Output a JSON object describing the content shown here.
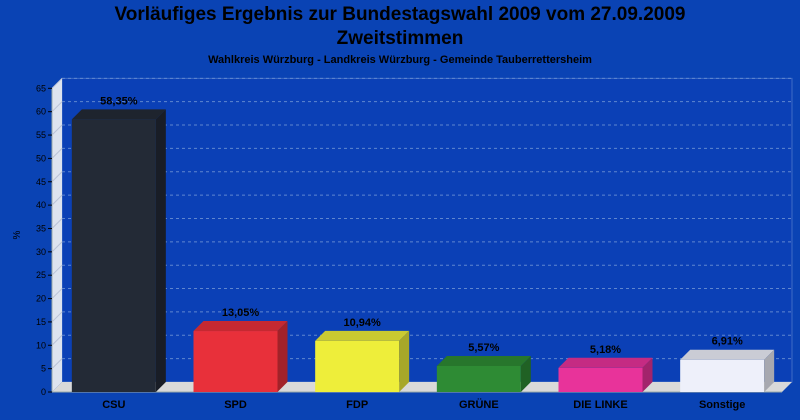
{
  "title_line1": "Vorläufiges Ergebnis zur Bundestagswahl 2009 vom 27.09.2009",
  "title_line2": "Zweitstimmen",
  "subtitle": "Wahlkreis Würzburg - Landkreis Würzburg - Gemeinde Tauberrettersheim",
  "colors": {
    "background": "#0a43b4",
    "plot_back": "#0b40b6",
    "floor": "#d9d9d9",
    "grid": "#5f86cf"
  },
  "chart_data": {
    "type": "bar",
    "ylabel": "%",
    "xlabel": "",
    "ylim": [
      0,
      65
    ],
    "yticks": [
      "0",
      "5",
      "10",
      "15",
      "20",
      "25",
      "30",
      "35",
      "40",
      "45",
      "50",
      "55",
      "60",
      "65"
    ],
    "grid": true,
    "categories": [
      "CSU",
      "SPD",
      "FDP",
      "GRÜNE",
      "DIE LINKE",
      "Sonstige"
    ],
    "values": [
      58.35,
      13.05,
      10.94,
      5.57,
      5.18,
      6.91
    ],
    "value_labels": [
      "58,35%",
      "13,05%",
      "10,94%",
      "5,57%",
      "5,18%",
      "6,91%"
    ],
    "bar_colors": [
      "#232a36",
      "#e8303a",
      "#eeee3a",
      "#2e8b34",
      "#e8339a",
      "#eef0fa"
    ]
  }
}
